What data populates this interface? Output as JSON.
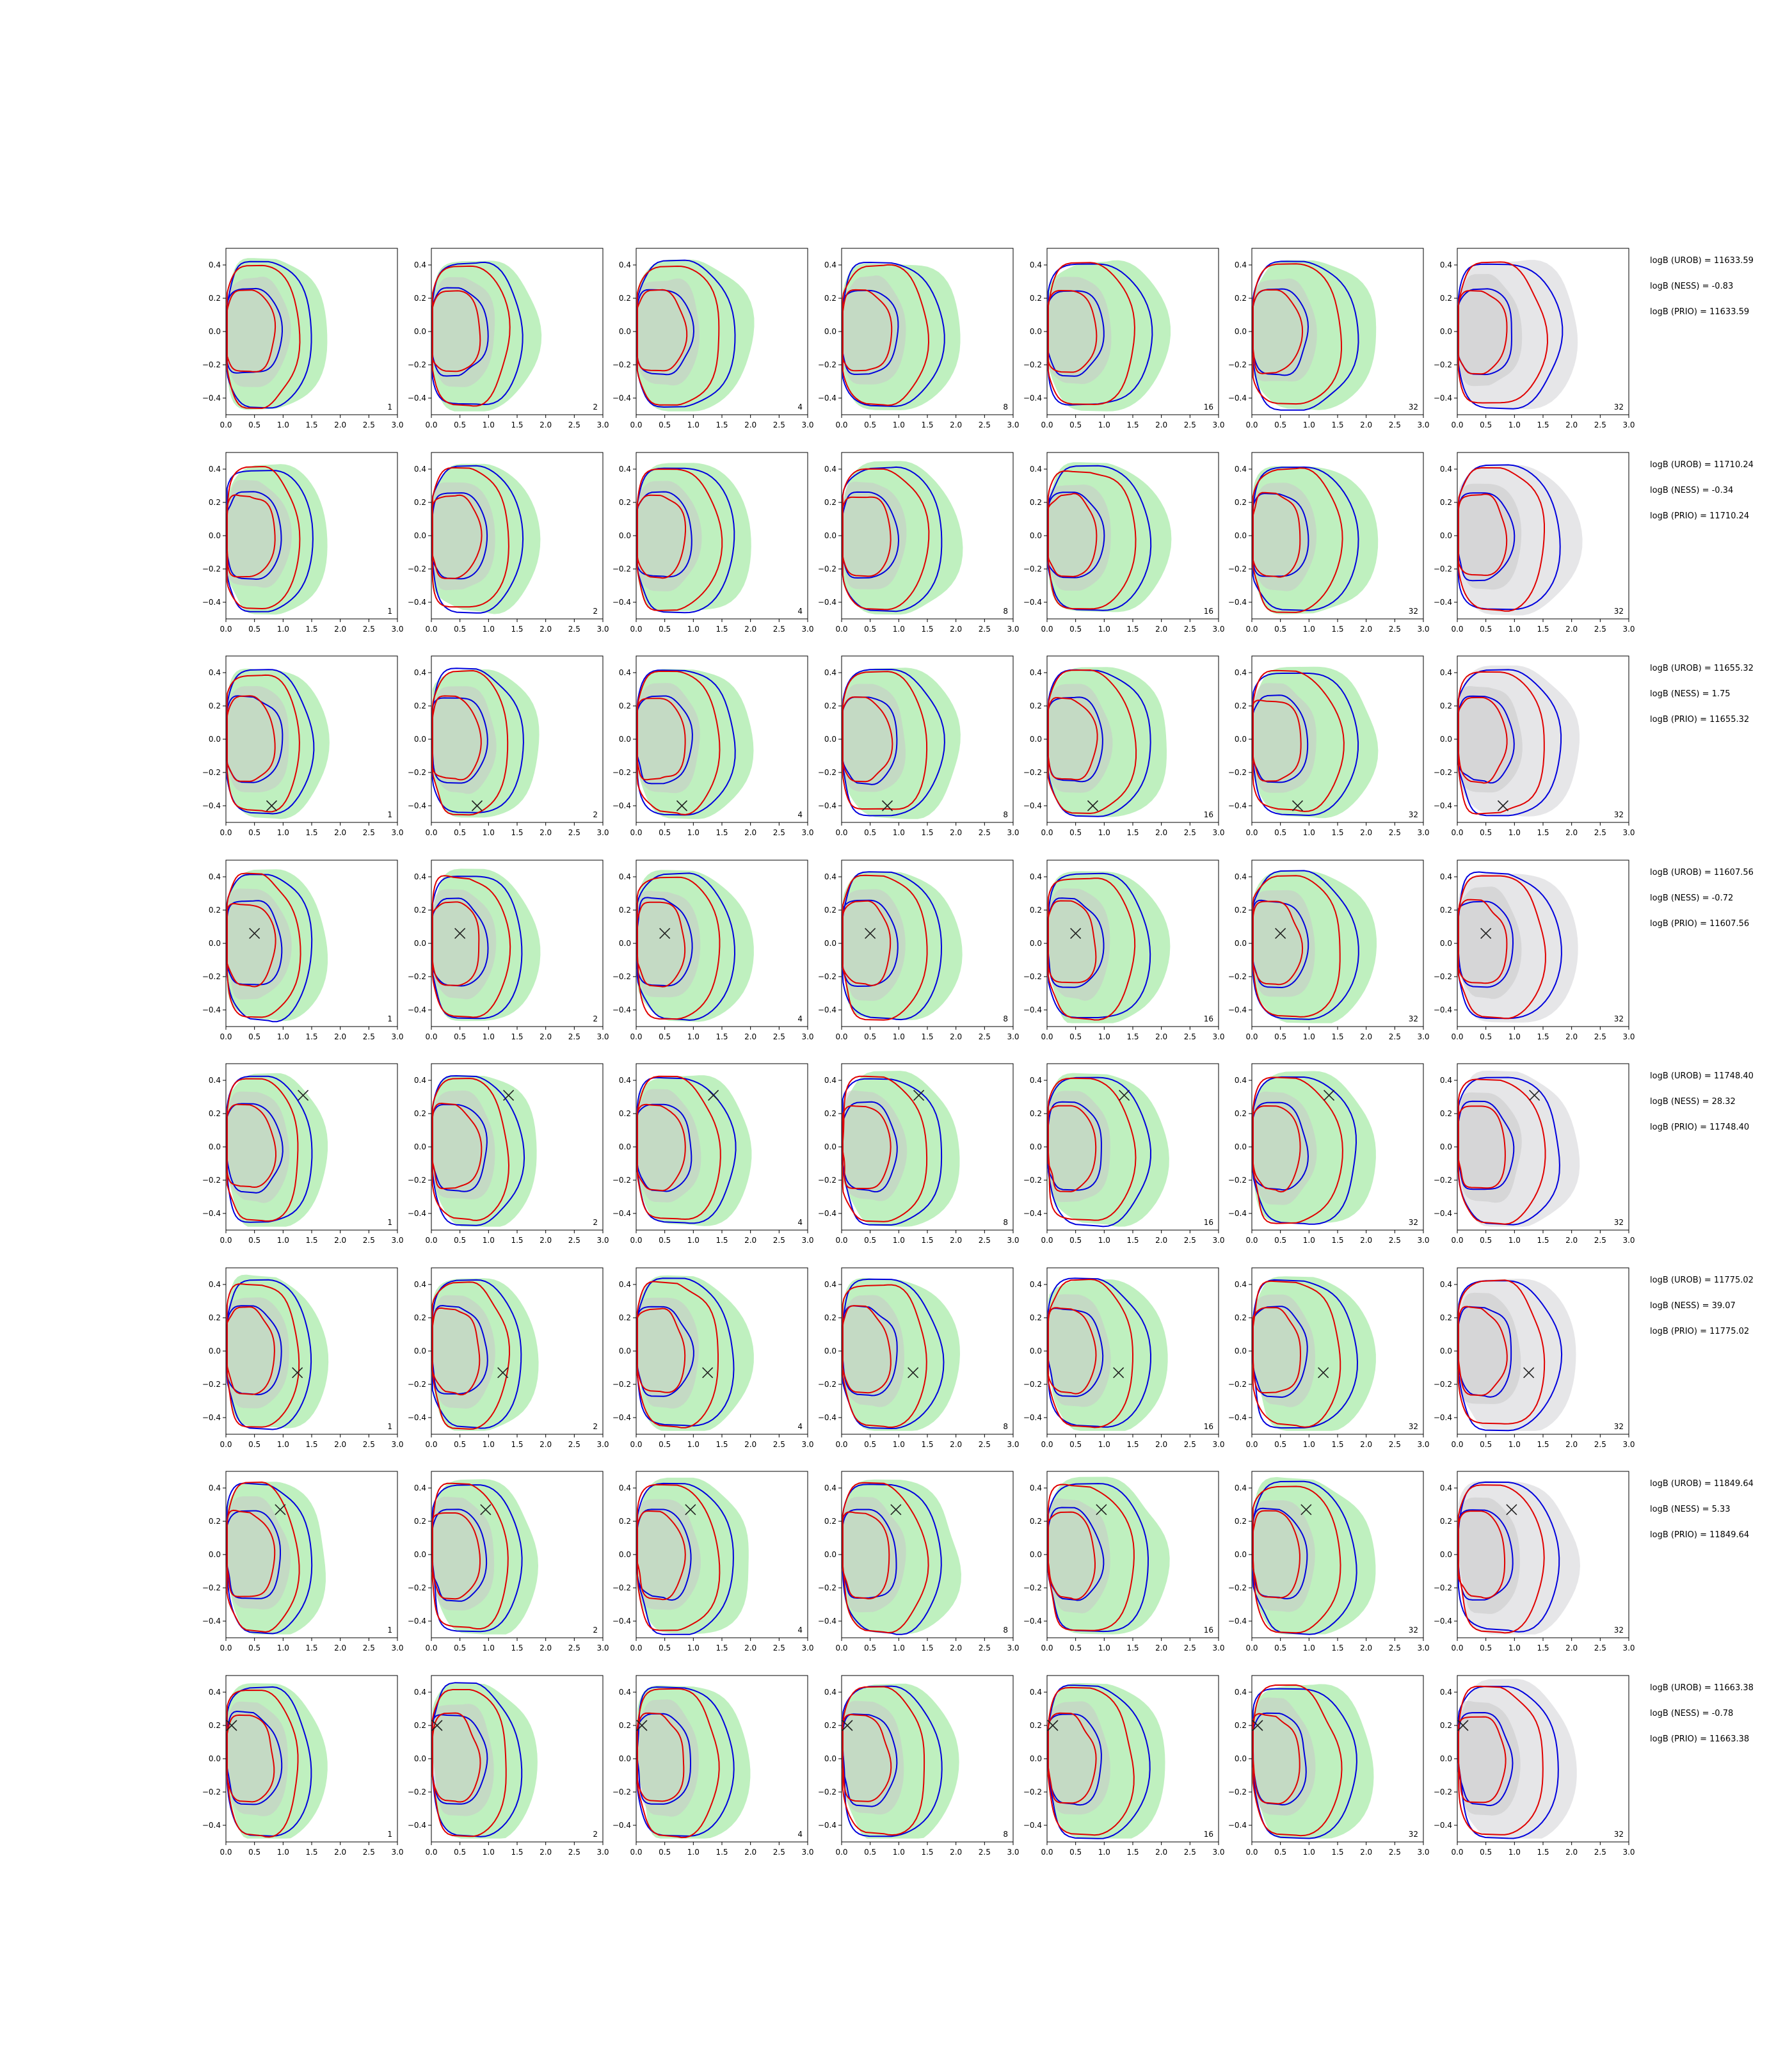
{
  "chart_data": {
    "type": "contour-grid",
    "xlim": [
      0,
      3.0
    ],
    "ylim": [
      -0.5,
      0.5
    ],
    "xticks": [
      "0.0",
      "0.5",
      "1.0",
      "1.5",
      "2.0",
      "2.5",
      "3.0"
    ],
    "yticks": [
      "0.4",
      "0.2",
      "0.0",
      "−0.2",
      "−0.4"
    ],
    "ytick_values": [
      0.4,
      0.2,
      0.0,
      -0.2,
      -0.4
    ],
    "columns": [
      "1",
      "2",
      "4",
      "8",
      "16",
      "32",
      "32"
    ],
    "colors": {
      "red": "#e00000",
      "blue": "#0000dd",
      "green_fill": "#bff0bf",
      "gray_fill": "#c8c8c8",
      "gray_bg": "#e6e6e8",
      "marker": "#222222"
    },
    "rows": [
      {
        "marker": null,
        "stats": [
          "logB (UROB) = 11633.59",
          "logB (NESS) = -0.83",
          "logB (PRIO) = 11633.59"
        ]
      },
      {
        "marker": null,
        "stats": [
          "logB (UROB) = 11710.24",
          "logB (NESS) = -0.34",
          "logB (PRIO) = 11710.24"
        ]
      },
      {
        "marker": [
          0.8,
          -0.4
        ],
        "stats": [
          "logB (UROB) = 11655.32",
          "logB (NESS) = 1.75",
          "logB (PRIO) = 11655.32"
        ]
      },
      {
        "marker": [
          0.5,
          0.06
        ],
        "stats": [
          "logB (UROB) = 11607.56",
          "logB (NESS) = -0.72",
          "logB (PRIO) = 11607.56"
        ]
      },
      {
        "marker": [
          1.35,
          0.31
        ],
        "stats": [
          "logB (UROB) = 11748.40",
          "logB (NESS) = 28.32",
          "logB (PRIO) = 11748.40"
        ]
      },
      {
        "marker": [
          1.25,
          -0.13
        ],
        "stats": [
          "logB (UROB) = 11775.02",
          "logB (NESS) = 39.07",
          "logB (PRIO) = 11775.02"
        ]
      },
      {
        "marker": [
          0.95,
          0.27
        ],
        "stats": [
          "logB (UROB) = 11849.64",
          "logB (NESS) = 5.33",
          "logB (PRIO) = 11849.64"
        ]
      },
      {
        "marker": [
          0.1,
          0.2
        ],
        "stats": [
          "logB (UROB) = 11663.38",
          "logB (NESS) = -0.78",
          "logB (PRIO) = 11663.38"
        ]
      }
    ]
  }
}
